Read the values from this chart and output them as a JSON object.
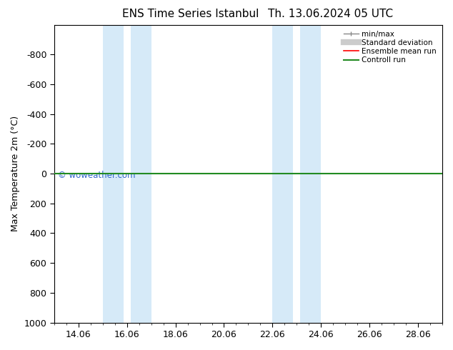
{
  "title": "ENS Time Series Istanbul",
  "title2": "Th. 13.06.2024 05 UTC",
  "ylabel": "Max Temperature 2m (°C)",
  "ylim_bottom": -1000,
  "ylim_top": 1000,
  "y_inverted": true,
  "xlim_min": 0,
  "xlim_max": 16,
  "xtick_positions": [
    1,
    3,
    5,
    7,
    9,
    11,
    13,
    15
  ],
  "xtick_labels": [
    "14.06",
    "16.06",
    "18.06",
    "20.06",
    "22.06",
    "24.06",
    "26.06",
    "28.06"
  ],
  "ytick_values": [
    -800,
    -600,
    -400,
    -200,
    0,
    200,
    400,
    600,
    800,
    1000
  ],
  "bg_color": "#ffffff",
  "plot_bg_color": "#ffffff",
  "shaded_bands": [
    {
      "x_start": 2.0,
      "x_end": 2.85
    },
    {
      "x_start": 3.15,
      "x_end": 4.0
    },
    {
      "x_start": 9.0,
      "x_end": 9.85
    },
    {
      "x_start": 10.15,
      "x_end": 11.0
    }
  ],
  "band_color": "#d6eaf8",
  "green_line_y": 0,
  "red_line_y": 0,
  "watermark": "© woweather.com",
  "watermark_color": "#3366cc",
  "legend_items": [
    {
      "label": "min/max",
      "color": "#888888",
      "lw": 1.0
    },
    {
      "label": "Standard deviation",
      "color": "#cccccc",
      "lw": 6
    },
    {
      "label": "Ensemble mean run",
      "color": "#ff0000",
      "lw": 1.2
    },
    {
      "label": "Controll run",
      "color": "#228b22",
      "lw": 1.5
    }
  ],
  "font_size": 9,
  "title_font_size": 11
}
